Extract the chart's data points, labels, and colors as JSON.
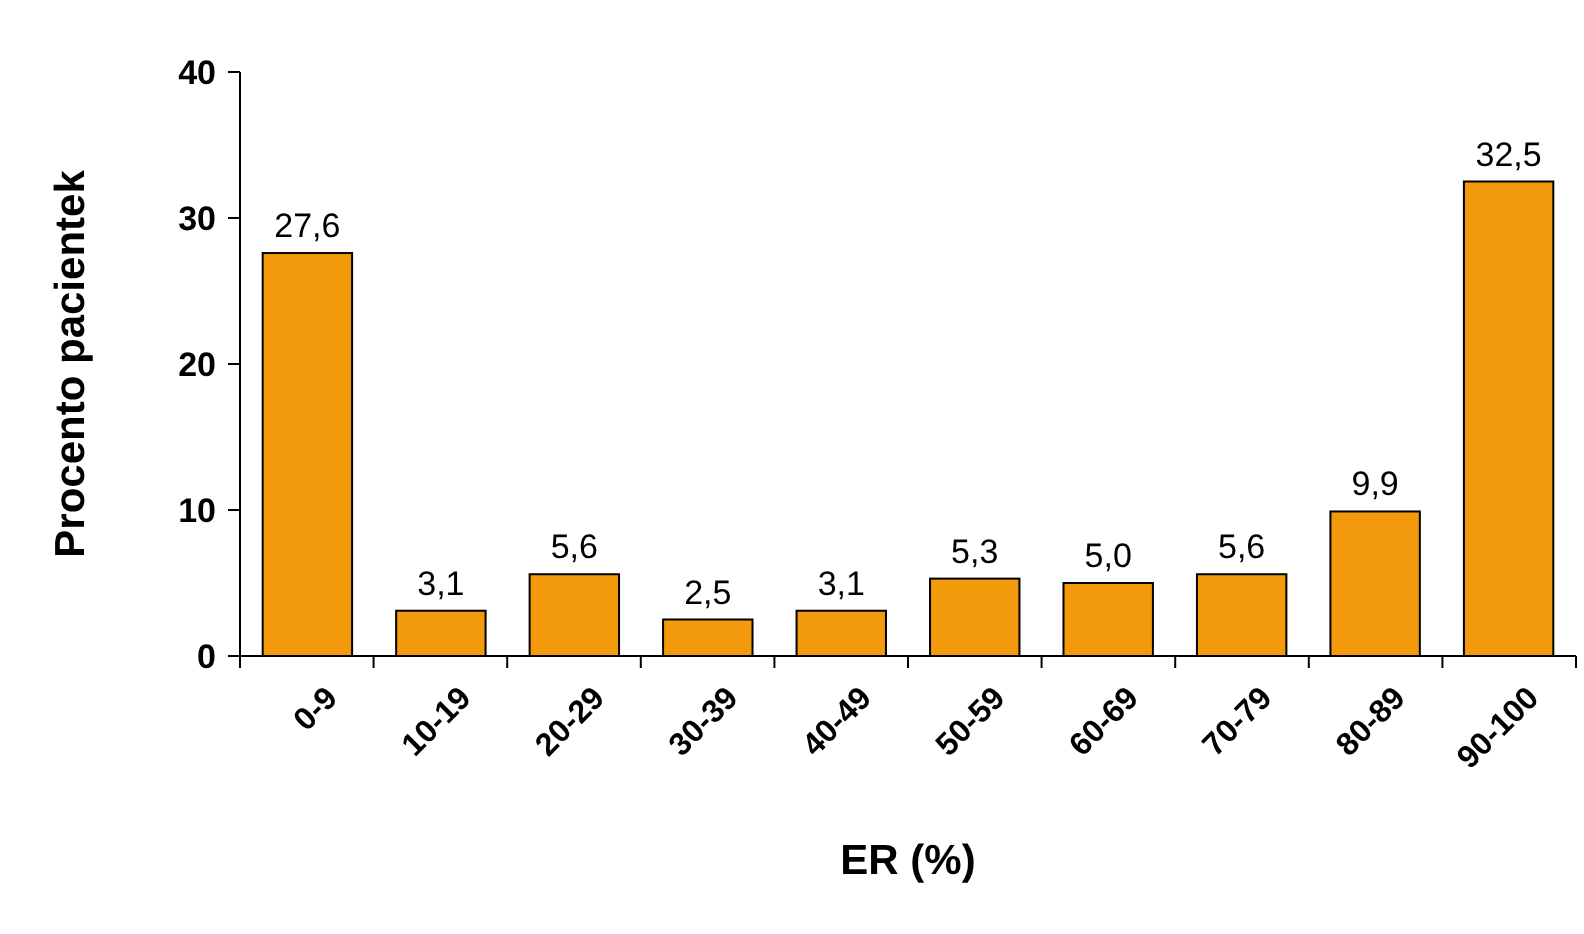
{
  "chart_data": {
    "type": "bar",
    "xlabel": "ER (%)",
    "ylabel": "Procento pacientek",
    "categories": [
      "0-9",
      "10-19",
      "20-29",
      "30-39",
      "40-49",
      "50-59",
      "60-69",
      "70-79",
      "80-89",
      "90-100"
    ],
    "values": [
      27.6,
      3.1,
      5.6,
      2.5,
      3.1,
      5.3,
      5.0,
      5.6,
      9.9,
      32.5
    ],
    "value_labels": [
      "27,6",
      "3,1",
      "5,6",
      "2,5",
      "3,1",
      "5,3",
      "5,0",
      "5,6",
      "9,9",
      "32,5"
    ],
    "color": "#f39a0c",
    "ylim": [
      0,
      40
    ],
    "yticks": [
      0,
      10,
      20,
      30,
      40
    ],
    "grid": false
  }
}
